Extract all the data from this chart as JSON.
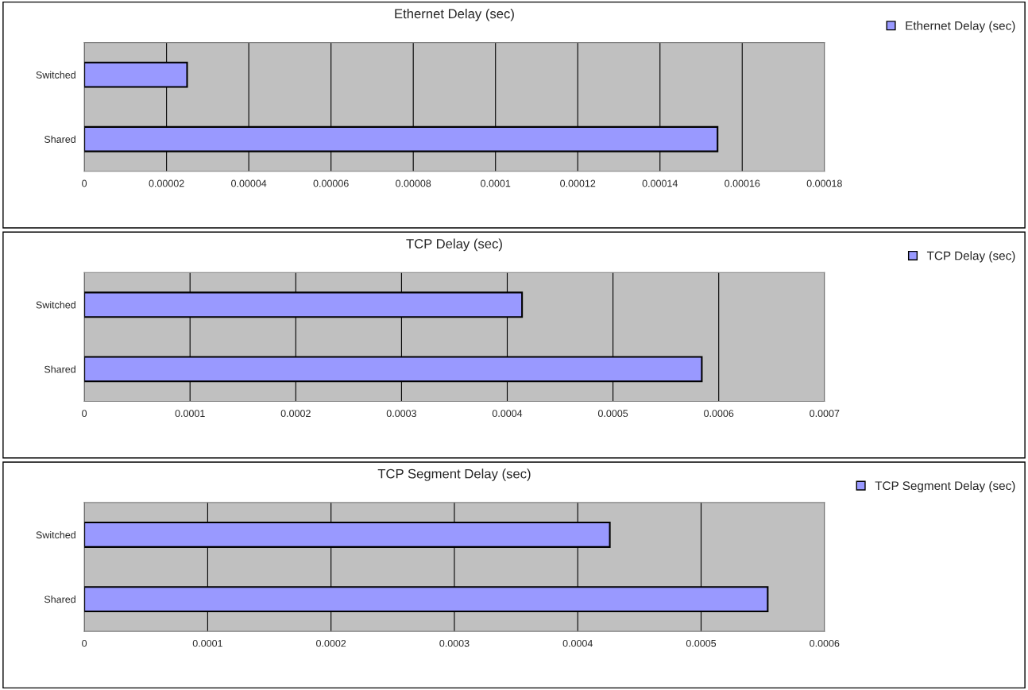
{
  "chart_data": [
    {
      "type": "bar",
      "orientation": "horizontal",
      "title": "Ethernet Delay (sec)",
      "categories": [
        "Switched",
        "Shared"
      ],
      "series": [
        {
          "name": "Ethernet Delay (sec)",
          "color": "#9999ff",
          "values": [
            2.5e-05,
            0.000154
          ]
        }
      ],
      "xlim": [
        0,
        0.00018
      ],
      "xticks": [
        0,
        {
          "value": 2e-05,
          "label": "0.00002"
        },
        {
          "value": 4e-05,
          "label": "0.00004"
        },
        {
          "value": 6e-05,
          "label": "0.00006"
        },
        {
          "value": 8e-05,
          "label": "0.00008"
        },
        0.0001,
        0.00012,
        0.00014,
        0.00016,
        0.00018
      ],
      "grid": "x",
      "legend": "top right"
    },
    {
      "type": "bar",
      "orientation": "horizontal",
      "title": "TCP Delay (sec)",
      "categories": [
        "Switched",
        "Shared"
      ],
      "series": [
        {
          "name": "TCP Delay (sec)",
          "color": "#9999ff",
          "values": [
            0.000414,
            0.000584
          ]
        }
      ],
      "xlim": [
        0,
        0.0007
      ],
      "xticks": [
        0,
        0.0001,
        0.0002,
        0.0003,
        0.0004,
        0.0005,
        0.0006,
        0.0007
      ],
      "grid": "x",
      "legend": "top right"
    },
    {
      "type": "bar",
      "orientation": "horizontal",
      "title": "TCP Segment Delay (sec)",
      "categories": [
        "Switched",
        "Shared"
      ],
      "series": [
        {
          "name": "TCP Segment Delay (sec)",
          "color": "#9999ff",
          "values": [
            0.000426,
            0.000554
          ]
        }
      ],
      "xlim": [
        0,
        0.0006
      ],
      "xticks": [
        0,
        0.0001,
        0.0002,
        0.0003,
        0.0004,
        0.0005,
        0.0006
      ],
      "grid": "x",
      "legend": "top right"
    }
  ]
}
